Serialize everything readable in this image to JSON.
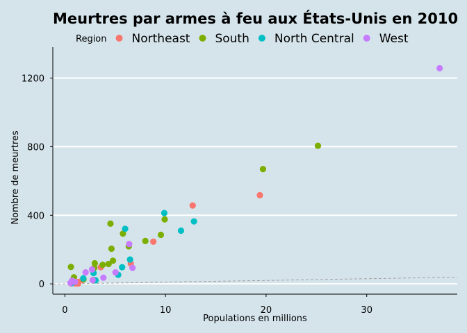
{
  "chart_data": {
    "type": "scatter",
    "title": "Meurtres par armes à feu aux États-Unis en 2010",
    "xlabel": "Populations en millions",
    "ylabel": "Nombre de meurtres",
    "xlim": [
      -1.2,
      39
    ],
    "ylim": [
      -60,
      1380
    ],
    "x_ticks": [
      0,
      10,
      20,
      30
    ],
    "y_ticks": [
      0,
      400,
      800,
      1200
    ],
    "grid": "horizontal",
    "legend": {
      "title": "Region",
      "placement": "top",
      "entries": [
        {
          "name": "Northeast",
          "color": "#f8766d"
        },
        {
          "name": "South",
          "color": "#7cae00"
        },
        {
          "name": "North Central",
          "color": "#00bfc4"
        },
        {
          "name": "West",
          "color": "#c77cff"
        }
      ]
    },
    "reference_line": {
      "style": "dashed",
      "color": "#a0a0a0",
      "slope_per_million": 1.0
    },
    "series": [
      {
        "name": "Northeast",
        "color": "#f8766d",
        "points": [
          [
            0.63,
            2
          ],
          [
            1.05,
            2
          ],
          [
            1.33,
            11
          ],
          [
            1.32,
            2
          ],
          [
            1.75,
            23
          ],
          [
            2.8,
            23
          ],
          [
            3.57,
            97
          ],
          [
            6.55,
            118
          ],
          [
            8.79,
            246
          ],
          [
            12.7,
            457
          ],
          [
            19.38,
            517
          ]
        ]
      },
      {
        "name": "South",
        "color": "#7cae00",
        "points": [
          [
            0.6,
            99
          ],
          [
            0.9,
            38
          ],
          [
            1.85,
            27
          ],
          [
            2.92,
            93
          ],
          [
            2.97,
            120
          ],
          [
            3.75,
            111
          ],
          [
            4.34,
            116
          ],
          [
            4.53,
            351
          ],
          [
            4.63,
            205
          ],
          [
            4.78,
            135
          ],
          [
            5.77,
            293
          ],
          [
            6.35,
            219
          ],
          [
            8.0,
            250
          ],
          [
            9.54,
            286
          ],
          [
            9.92,
            376
          ],
          [
            19.69,
            669
          ],
          [
            25.15,
            805
          ]
        ]
      },
      {
        "name": "North Central",
        "color": "#00bfc4",
        "points": [
          [
            0.67,
            4
          ],
          [
            0.81,
            8
          ],
          [
            1.83,
            32
          ],
          [
            2.85,
            63
          ],
          [
            3.05,
            21
          ],
          [
            5.3,
            53
          ],
          [
            5.69,
            97
          ],
          [
            5.99,
            321
          ],
          [
            6.48,
            142
          ],
          [
            9.88,
            413
          ],
          [
            11.54,
            310
          ],
          [
            12.83,
            364
          ]
        ]
      },
      {
        "name": "West",
        "color": "#c77cff",
        "points": [
          [
            0.56,
            5
          ],
          [
            0.71,
            19
          ],
          [
            0.99,
            12
          ],
          [
            2.06,
            67
          ],
          [
            2.7,
            84
          ],
          [
            2.76,
            22
          ],
          [
            3.83,
            36
          ],
          [
            5.03,
            67
          ],
          [
            6.39,
            232
          ],
          [
            6.72,
            93
          ],
          [
            37.25,
            1257
          ]
        ]
      }
    ]
  }
}
